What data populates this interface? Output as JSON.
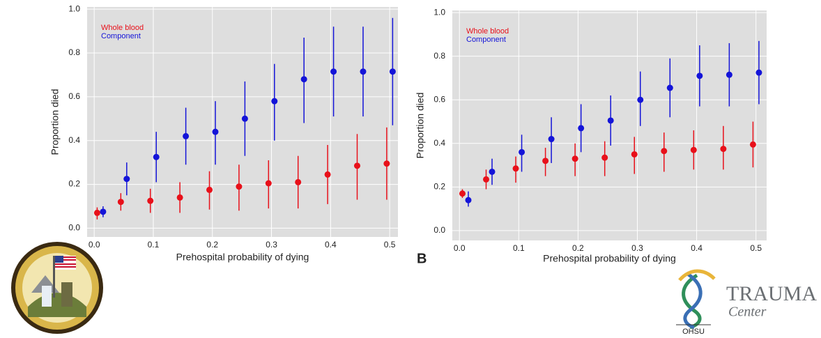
{
  "chart_data": [
    {
      "type": "errorbar",
      "xlabel": "Prehospital probability of dying",
      "ylabel": "Proportion died",
      "xlim": [
        -0.012,
        0.514
      ],
      "ylim": [
        -0.04,
        1.01
      ],
      "xticks": [
        {
          "value": 0,
          "label": "0.0"
        },
        0.1,
        0.2,
        0.3,
        0.4,
        0.5
      ],
      "yticks": [
        {
          "value": 0,
          "label": "0.0"
        },
        0.2,
        0.4,
        0.6,
        0.8,
        {
          "value": 1,
          "label": "1.0"
        }
      ],
      "grid": true,
      "legend": "upper left",
      "series": [
        {
          "name": "Whole blood",
          "color": "#e8101a",
          "x": [
            0.005,
            0.045,
            0.095,
            0.145,
            0.195,
            0.245,
            0.295,
            0.345,
            0.395,
            0.445,
            0.495
          ],
          "values": [
            0.07,
            0.12,
            0.125,
            0.14,
            0.175,
            0.19,
            0.205,
            0.21,
            0.245,
            0.285,
            0.295
          ],
          "lower": [
            0.04,
            0.08,
            0.07,
            0.07,
            0.085,
            0.08,
            0.09,
            0.09,
            0.11,
            0.13,
            0.13
          ],
          "upper": [
            0.095,
            0.16,
            0.18,
            0.21,
            0.26,
            0.29,
            0.31,
            0.33,
            0.38,
            0.43,
            0.46
          ]
        },
        {
          "name": "Component",
          "color": "#1414d8",
          "x": [
            0.015,
            0.055,
            0.105,
            0.155,
            0.205,
            0.255,
            0.305,
            0.355,
            0.405,
            0.455,
            0.505
          ],
          "values": [
            0.075,
            0.225,
            0.325,
            0.42,
            0.44,
            0.5,
            0.58,
            0.68,
            0.715,
            0.715,
            0.715
          ],
          "lower": [
            0.05,
            0.15,
            0.21,
            0.29,
            0.29,
            0.33,
            0.4,
            0.48,
            0.51,
            0.51,
            0.47
          ],
          "upper": [
            0.1,
            0.3,
            0.44,
            0.55,
            0.58,
            0.67,
            0.75,
            0.87,
            0.92,
            0.92,
            0.96
          ]
        }
      ]
    },
    {
      "type": "errorbar",
      "xlabel": "Prehospital probability of dying",
      "ylabel": "Proportion died",
      "xlim": [
        -0.012,
        0.518
      ],
      "ylim": [
        -0.045,
        1.01
      ],
      "xticks": [
        {
          "value": 0,
          "label": "0.0"
        },
        0.1,
        0.2,
        0.3,
        0.4,
        0.5
      ],
      "yticks": [
        {
          "value": 0,
          "label": "0.0"
        },
        0.2,
        0.4,
        0.6,
        0.8,
        {
          "value": 1,
          "label": "1.0"
        }
      ],
      "grid": true,
      "legend": "upper left",
      "series": [
        {
          "name": "Whole blood",
          "color": "#e8101a",
          "x": [
            0.005,
            0.045,
            0.095,
            0.145,
            0.195,
            0.245,
            0.295,
            0.345,
            0.395,
            0.445,
            0.495
          ],
          "values": [
            0.17,
            0.235,
            0.285,
            0.32,
            0.33,
            0.335,
            0.35,
            0.365,
            0.37,
            0.375,
            0.395
          ],
          "lower": [
            0.15,
            0.19,
            0.22,
            0.25,
            0.25,
            0.25,
            0.26,
            0.27,
            0.28,
            0.28,
            0.29
          ],
          "upper": [
            0.19,
            0.28,
            0.34,
            0.38,
            0.4,
            0.41,
            0.43,
            0.45,
            0.46,
            0.48,
            0.5
          ]
        },
        {
          "name": "Component",
          "color": "#1414d8",
          "x": [
            0.015,
            0.055,
            0.105,
            0.155,
            0.205,
            0.255,
            0.305,
            0.355,
            0.405,
            0.455,
            0.505
          ],
          "values": [
            0.14,
            0.27,
            0.36,
            0.42,
            0.47,
            0.505,
            0.6,
            0.655,
            0.71,
            0.715,
            0.725
          ],
          "lower": [
            0.11,
            0.21,
            0.27,
            0.31,
            0.36,
            0.39,
            0.48,
            0.52,
            0.57,
            0.57,
            0.58
          ],
          "upper": [
            0.18,
            0.33,
            0.44,
            0.52,
            0.58,
            0.62,
            0.73,
            0.79,
            0.85,
            0.86,
            0.87
          ]
        }
      ]
    }
  ],
  "panel_label": "B",
  "logo": {
    "title": "TRAUMA",
    "subtitle": "Center",
    "org": "OHSU"
  }
}
